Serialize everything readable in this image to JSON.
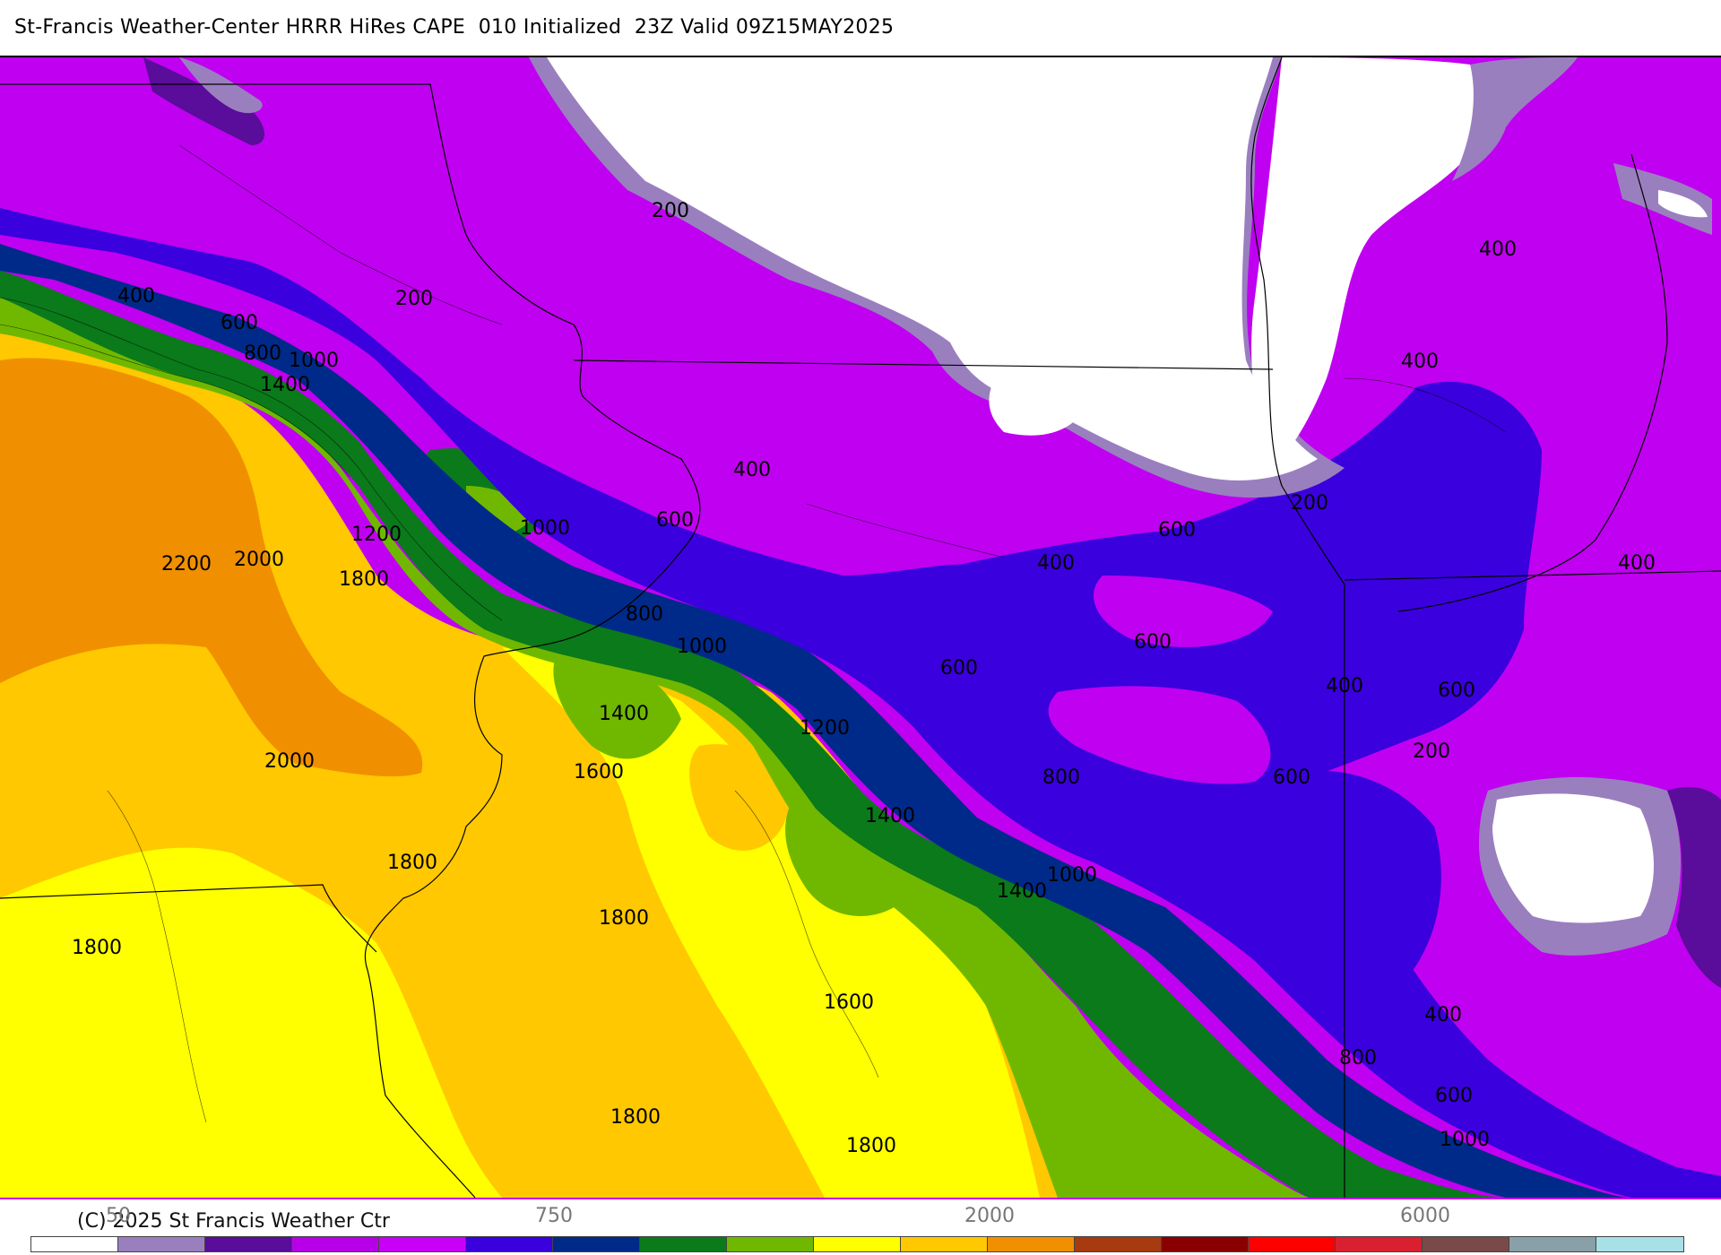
{
  "title": "St-Francis Weather-Center HRRR HiRes CAPE  010 Initialized  23Z Valid 09Z15MAY2025",
  "copyright": "(C) 2025 St Francis Weather Ctr",
  "colors": {
    "white": "#ffffff",
    "light_lavender": "#9a7fbf",
    "dark_purple": "#5a0c9a",
    "magenta": "#c000f0",
    "violet": "#3a00dd",
    "navy": "#002a8a",
    "dark_green": "#0a7a1a",
    "green": "#70b800",
    "yellow": "#ffff00",
    "gold": "#ffc800",
    "orange": "#f09000",
    "boundary": "#000000"
  },
  "colorbar": {
    "ticks": [
      "50",
      "750",
      "2000",
      "6000"
    ],
    "colors": [
      "#ffffff",
      "#9a7fbf",
      "#5a0c9a",
      "#b800e8",
      "#c800f8",
      "#3a00dd",
      "#002a8a",
      "#0a7a1a",
      "#70b800",
      "#ffff00",
      "#ffc800",
      "#f09000",
      "#a83a10",
      "#8a0000",
      "#ff0000",
      "#d82030",
      "#7a4a4a",
      "#8aa0a8",
      "#a8e0e8"
    ]
  },
  "contour_labels": [
    "200",
    "400",
    "400",
    "200",
    "600",
    "800",
    "1000",
    "1400",
    "400",
    "400",
    "1000",
    "600",
    "1200",
    "2200",
    "2000",
    "1800",
    "800",
    "1000",
    "200",
    "600",
    "400",
    "400",
    "600",
    "600",
    "1400",
    "1200",
    "400",
    "600",
    "1600",
    "2000",
    "200",
    "800",
    "600",
    "1400",
    "1000",
    "1800",
    "1400",
    "1800",
    "1800",
    "1600",
    "400",
    "800",
    "600",
    "1000",
    "1800",
    "1800"
  ]
}
